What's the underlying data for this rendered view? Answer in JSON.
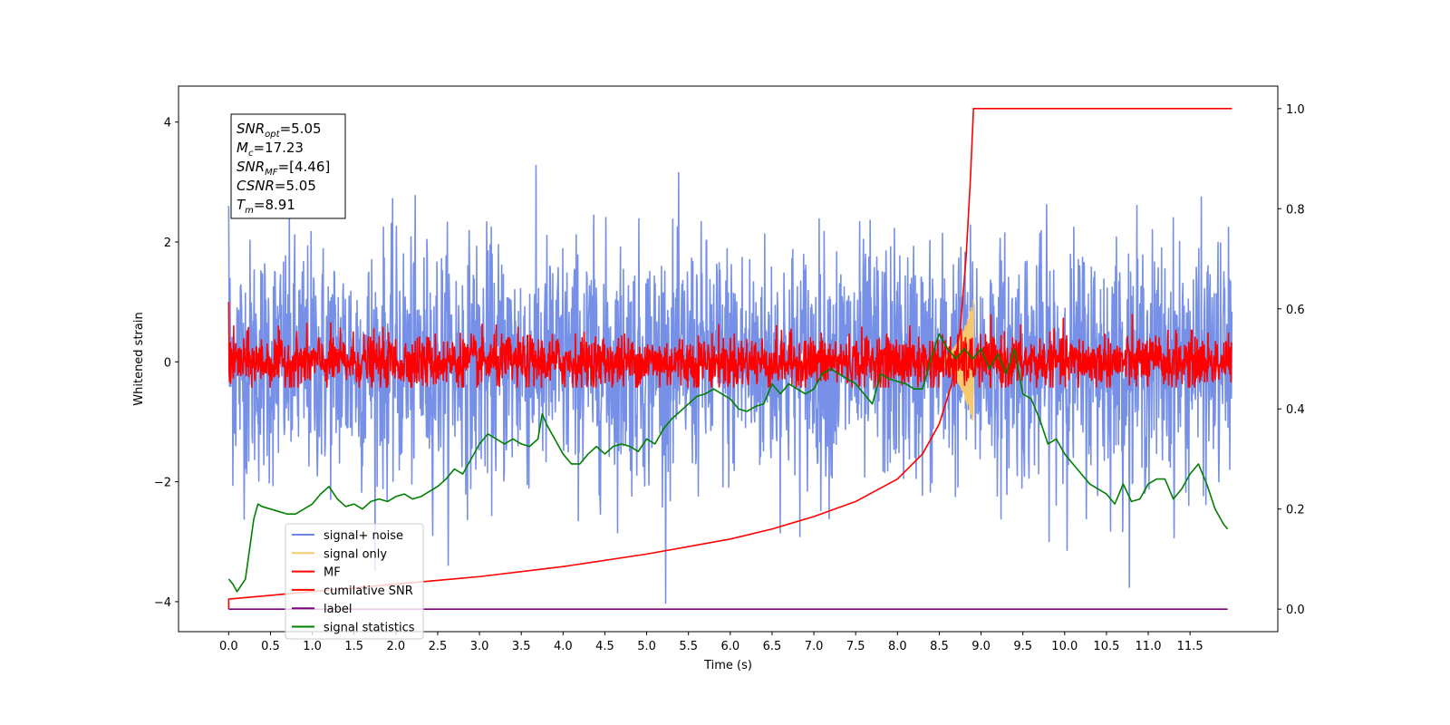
{
  "chart_data": {
    "type": "line",
    "xlabel": "Time (s)",
    "ylabel": "Whitened strain",
    "xlim": [
      -0.6,
      12.55
    ],
    "ylim": [
      -4.5,
      4.6
    ],
    "y2lim": [
      -0.045,
      1.045
    ],
    "x_ticks": [
      "0.0",
      "0.5",
      "1.0",
      "1.5",
      "2.0",
      "2.5",
      "3.0",
      "3.5",
      "4.0",
      "4.5",
      "5.0",
      "5.5",
      "6.0",
      "6.5",
      "7.0",
      "7.5",
      "8.0",
      "8.5",
      "9.0",
      "9.5",
      "10.0",
      "10.5",
      "11.0",
      "11.5"
    ],
    "y_ticks": [
      "−4",
      "−2",
      "0",
      "2",
      "4"
    ],
    "y2_ticks": [
      "0.0",
      "0.2",
      "0.4",
      "0.6",
      "0.8",
      "1.0"
    ],
    "annotation": [
      {
        "base": "SNR",
        "sub": "opt",
        "rest": "=5.05"
      },
      {
        "base": "M",
        "sub": "c",
        "rest": "=17.23"
      },
      {
        "base": "SNR",
        "sub": "MF",
        "rest": "=[4.46]"
      },
      {
        "base": "CSNR",
        "sub": "",
        "rest": "=5.05"
      },
      {
        "base": "T",
        "sub": "m",
        "rest": "=8.91"
      }
    ],
    "legend_position": "lower-left",
    "series": [
      {
        "name": "signal+ noise",
        "color": "#6f8ae6",
        "axis": "left",
        "kind": "noise",
        "x_range": [
          0.0,
          12.0
        ],
        "std": 1.0,
        "min": -4.1,
        "max": 4.15
      },
      {
        "name": "signal only",
        "color": "#f7c870",
        "axis": "left",
        "kind": "chirp",
        "peak_time": 8.91,
        "peak_amplitude": 1.05
      },
      {
        "name": "MF",
        "color": "#ff0000",
        "axis": "left",
        "kind": "noise",
        "x_range": [
          0.0,
          12.0
        ],
        "std": 0.22,
        "min": -0.42,
        "max": 1.0
      },
      {
        "name": "cumilative SNR",
        "color": "#ff0000",
        "axis": "right",
        "kind": "curve",
        "points": [
          [
            0.0,
            0.0
          ],
          [
            0.0,
            0.02
          ],
          [
            1.0,
            0.035
          ],
          [
            2.0,
            0.05
          ],
          [
            3.0,
            0.065
          ],
          [
            4.0,
            0.085
          ],
          [
            5.0,
            0.11
          ],
          [
            6.0,
            0.14
          ],
          [
            6.5,
            0.16
          ],
          [
            7.0,
            0.185
          ],
          [
            7.5,
            0.215
          ],
          [
            8.0,
            0.26
          ],
          [
            8.3,
            0.31
          ],
          [
            8.5,
            0.37
          ],
          [
            8.65,
            0.45
          ],
          [
            8.75,
            0.56
          ],
          [
            8.82,
            0.7
          ],
          [
            8.87,
            0.85
          ],
          [
            8.91,
            1.0
          ],
          [
            12.0,
            1.0
          ]
        ]
      },
      {
        "name": "label",
        "color": "#800080",
        "axis": "right",
        "kind": "curve",
        "points": [
          [
            0.0,
            0.0
          ],
          [
            11.95,
            0.0
          ]
        ]
      },
      {
        "name": "signal statistics",
        "color": "#008000",
        "axis": "right",
        "kind": "curve",
        "points": [
          [
            0.0,
            0.06
          ],
          [
            0.05,
            0.05
          ],
          [
            0.1,
            0.035
          ],
          [
            0.2,
            0.06
          ],
          [
            0.25,
            0.12
          ],
          [
            0.3,
            0.18
          ],
          [
            0.35,
            0.21
          ],
          [
            0.4,
            0.205
          ],
          [
            0.5,
            0.2
          ],
          [
            0.6,
            0.195
          ],
          [
            0.7,
            0.19
          ],
          [
            0.8,
            0.19
          ],
          [
            0.9,
            0.2
          ],
          [
            1.0,
            0.21
          ],
          [
            1.1,
            0.23
          ],
          [
            1.2,
            0.245
          ],
          [
            1.3,
            0.22
          ],
          [
            1.4,
            0.205
          ],
          [
            1.5,
            0.21
          ],
          [
            1.6,
            0.2
          ],
          [
            1.7,
            0.215
          ],
          [
            1.8,
            0.22
          ],
          [
            1.9,
            0.215
          ],
          [
            2.0,
            0.225
          ],
          [
            2.1,
            0.23
          ],
          [
            2.2,
            0.22
          ],
          [
            2.3,
            0.225
          ],
          [
            2.4,
            0.235
          ],
          [
            2.5,
            0.245
          ],
          [
            2.6,
            0.26
          ],
          [
            2.7,
            0.28
          ],
          [
            2.8,
            0.27
          ],
          [
            2.9,
            0.3
          ],
          [
            3.0,
            0.33
          ],
          [
            3.1,
            0.35
          ],
          [
            3.2,
            0.34
          ],
          [
            3.3,
            0.33
          ],
          [
            3.4,
            0.34
          ],
          [
            3.5,
            0.33
          ],
          [
            3.6,
            0.325
          ],
          [
            3.7,
            0.34
          ],
          [
            3.75,
            0.39
          ],
          [
            3.8,
            0.37
          ],
          [
            3.9,
            0.34
          ],
          [
            4.0,
            0.31
          ],
          [
            4.1,
            0.29
          ],
          [
            4.2,
            0.29
          ],
          [
            4.3,
            0.31
          ],
          [
            4.4,
            0.325
          ],
          [
            4.5,
            0.31
          ],
          [
            4.6,
            0.325
          ],
          [
            4.7,
            0.33
          ],
          [
            4.8,
            0.325
          ],
          [
            4.9,
            0.315
          ],
          [
            5.0,
            0.34
          ],
          [
            5.1,
            0.33
          ],
          [
            5.2,
            0.36
          ],
          [
            5.3,
            0.38
          ],
          [
            5.4,
            0.395
          ],
          [
            5.5,
            0.41
          ],
          [
            5.6,
            0.425
          ],
          [
            5.7,
            0.43
          ],
          [
            5.8,
            0.44
          ],
          [
            5.9,
            0.43
          ],
          [
            6.0,
            0.42
          ],
          [
            6.1,
            0.4
          ],
          [
            6.2,
            0.395
          ],
          [
            6.3,
            0.405
          ],
          [
            6.4,
            0.41
          ],
          [
            6.5,
            0.45
          ],
          [
            6.6,
            0.43
          ],
          [
            6.7,
            0.45
          ],
          [
            6.8,
            0.44
          ],
          [
            6.9,
            0.43
          ],
          [
            7.0,
            0.44
          ],
          [
            7.1,
            0.47
          ],
          [
            7.2,
            0.48
          ],
          [
            7.3,
            0.47
          ],
          [
            7.4,
            0.46
          ],
          [
            7.5,
            0.45
          ],
          [
            7.6,
            0.43
          ],
          [
            7.7,
            0.41
          ],
          [
            7.8,
            0.47
          ],
          [
            7.9,
            0.46
          ],
          [
            8.0,
            0.455
          ],
          [
            8.1,
            0.45
          ],
          [
            8.2,
            0.44
          ],
          [
            8.3,
            0.44
          ],
          [
            8.4,
            0.5
          ],
          [
            8.5,
            0.55
          ],
          [
            8.6,
            0.52
          ],
          [
            8.7,
            0.5
          ],
          [
            8.8,
            0.52
          ],
          [
            8.9,
            0.5
          ],
          [
            9.0,
            0.52
          ],
          [
            9.1,
            0.48
          ],
          [
            9.2,
            0.51
          ],
          [
            9.3,
            0.47
          ],
          [
            9.4,
            0.52
          ],
          [
            9.5,
            0.43
          ],
          [
            9.6,
            0.42
          ],
          [
            9.7,
            0.38
          ],
          [
            9.8,
            0.33
          ],
          [
            9.9,
            0.34
          ],
          [
            10.0,
            0.31
          ],
          [
            10.1,
            0.29
          ],
          [
            10.2,
            0.27
          ],
          [
            10.3,
            0.25
          ],
          [
            10.4,
            0.24
          ],
          [
            10.5,
            0.23
          ],
          [
            10.6,
            0.21
          ],
          [
            10.7,
            0.25
          ],
          [
            10.8,
            0.215
          ],
          [
            10.9,
            0.22
          ],
          [
            11.0,
            0.25
          ],
          [
            11.1,
            0.26
          ],
          [
            11.2,
            0.26
          ],
          [
            11.3,
            0.22
          ],
          [
            11.4,
            0.24
          ],
          [
            11.5,
            0.27
          ],
          [
            11.6,
            0.29
          ],
          [
            11.7,
            0.25
          ],
          [
            11.8,
            0.2
          ],
          [
            11.9,
            0.17
          ],
          [
            11.95,
            0.16
          ]
        ]
      }
    ]
  }
}
